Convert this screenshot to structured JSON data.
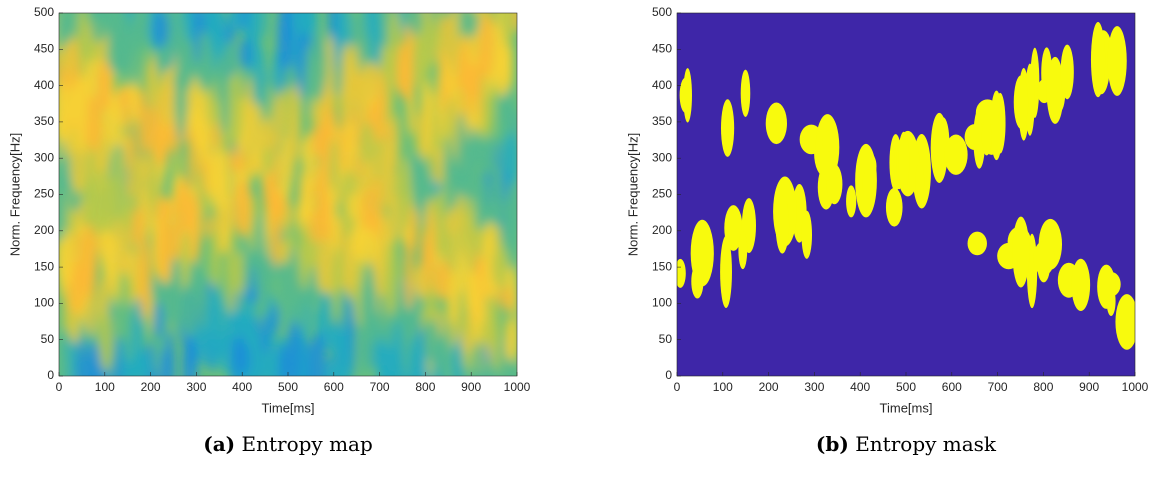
{
  "chart_data": [
    {
      "type": "heatmap",
      "style": "map",
      "xlabel": "Time[ms]",
      "ylabel": "Norm. Frequency[Hz]",
      "xlim": [
        0,
        1000
      ],
      "xticks": [
        0,
        100,
        200,
        300,
        400,
        500,
        600,
        700,
        800,
        900,
        1000
      ],
      "ylim": [
        0,
        500
      ],
      "yticks": [
        0,
        50,
        100,
        150,
        200,
        250,
        300,
        350,
        400,
        450,
        500
      ],
      "caption_label": "(a)",
      "caption": "Entropy map"
    },
    {
      "type": "heatmap",
      "style": "mask",
      "xlabel": "Time[ms]",
      "ylabel": "Norm. Frequency[Hz]",
      "xlim": [
        0,
        1000
      ],
      "xticks": [
        0,
        100,
        200,
        300,
        400,
        500,
        600,
        700,
        800,
        900,
        1000
      ],
      "ylim": [
        0,
        500
      ],
      "yticks": [
        0,
        50,
        100,
        150,
        200,
        250,
        300,
        350,
        400,
        450,
        500
      ],
      "caption_label": "(b)",
      "caption": "Entropy mask"
    }
  ]
}
